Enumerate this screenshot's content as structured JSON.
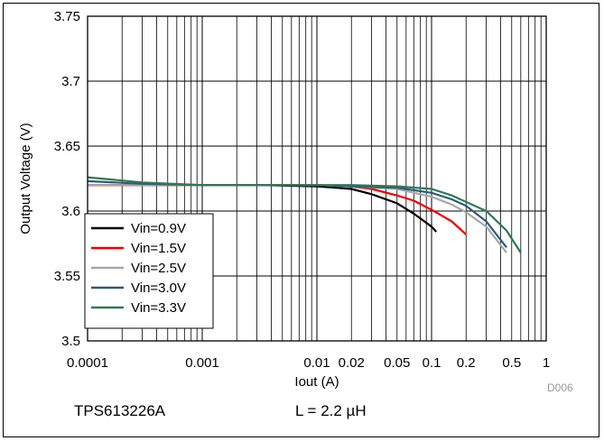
{
  "chart_data": {
    "type": "line",
    "xlabel": "Iout (A)",
    "ylabel": "Output Voltage (V)",
    "xscale": "log",
    "xlim": [
      0.0001,
      1
    ],
    "ylim": [
      3.5,
      3.75
    ],
    "grid": true,
    "legend_position": "bottom-left",
    "x_tick_labels": [
      {
        "value": 0.0001,
        "label": "0.0001"
      },
      {
        "value": 0.001,
        "label": "0.001"
      },
      {
        "value": 0.01,
        "label": "0.01"
      },
      {
        "value": 0.02,
        "label": "0.02"
      },
      {
        "value": 0.05,
        "label": "0.05"
      },
      {
        "value": 0.1,
        "label": "0.1"
      },
      {
        "value": 0.2,
        "label": "0.2"
      },
      {
        "value": 0.5,
        "label": "0.5"
      },
      {
        "value": 1,
        "label": "1"
      }
    ],
    "y_tick_labels": [
      {
        "value": 3.5,
        "label": "3.5"
      },
      {
        "value": 3.55,
        "label": "3.55"
      },
      {
        "value": 3.6,
        "label": "3.6"
      },
      {
        "value": 3.65,
        "label": "3.65"
      },
      {
        "value": 3.7,
        "label": "3.7"
      },
      {
        "value": 3.75,
        "label": "3.75"
      }
    ],
    "series": [
      {
        "name": "Vin=0.9V",
        "color": "#000000",
        "x": [
          0.0001,
          0.0003,
          0.001,
          0.003,
          0.01,
          0.02,
          0.03,
          0.05,
          0.07,
          0.1,
          0.11
        ],
        "y": [
          3.62,
          3.62,
          3.62,
          3.62,
          3.619,
          3.617,
          3.613,
          3.606,
          3.598,
          3.588,
          3.584
        ]
      },
      {
        "name": "Vin=1.5V",
        "color": "#ee0000",
        "x": [
          0.0001,
          0.0003,
          0.001,
          0.003,
          0.01,
          0.02,
          0.03,
          0.05,
          0.07,
          0.1,
          0.15,
          0.2
        ],
        "y": [
          3.62,
          3.62,
          3.62,
          3.62,
          3.62,
          3.619,
          3.617,
          3.612,
          3.608,
          3.601,
          3.592,
          3.582
        ]
      },
      {
        "name": "Vin=2.5V",
        "color": "#a8a8a8",
        "x": [
          0.0001,
          0.0003,
          0.001,
          0.003,
          0.01,
          0.02,
          0.05,
          0.1,
          0.15,
          0.2,
          0.3,
          0.45
        ],
        "y": [
          3.62,
          3.62,
          3.62,
          3.62,
          3.62,
          3.619,
          3.617,
          3.611,
          3.605,
          3.599,
          3.588,
          3.568
        ]
      },
      {
        "name": "Vin=3.0V",
        "color": "#2e5a78",
        "x": [
          0.0001,
          0.0003,
          0.001,
          0.003,
          0.01,
          0.02,
          0.05,
          0.1,
          0.15,
          0.2,
          0.3,
          0.45
        ],
        "y": [
          3.623,
          3.621,
          3.62,
          3.62,
          3.62,
          3.619,
          3.618,
          3.614,
          3.609,
          3.604,
          3.592,
          3.572
        ]
      },
      {
        "name": "Vin=3.3V",
        "color": "#2e7a54",
        "x": [
          0.0001,
          0.0003,
          0.001,
          0.003,
          0.01,
          0.02,
          0.05,
          0.1,
          0.15,
          0.2,
          0.3,
          0.45,
          0.6
        ],
        "y": [
          3.626,
          3.622,
          3.62,
          3.62,
          3.62,
          3.62,
          3.619,
          3.617,
          3.612,
          3.607,
          3.6,
          3.585,
          3.568
        ]
      }
    ]
  },
  "footer": {
    "device": "TPS613226A",
    "inductor": "L = 2.2 µH",
    "code": "D006"
  }
}
